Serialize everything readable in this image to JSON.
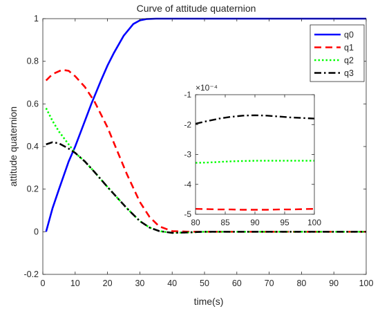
{
  "chart_data": [
    {
      "type": "line",
      "title": "Curve of attitude quaternion",
      "xlabel": "time(s)",
      "ylabel": "attitude quaternion",
      "xlim": [
        0,
        100
      ],
      "ylim": [
        -0.2,
        1
      ],
      "xticks": [
        0,
        10,
        20,
        30,
        40,
        50,
        60,
        70,
        80,
        90,
        100
      ],
      "yticks": [
        -0.2,
        0,
        0.2,
        0.4,
        0.6,
        0.8,
        1
      ],
      "xtick_labels": [
        "0",
        "10",
        "20",
        "30",
        "40",
        "50",
        "60",
        "70",
        "80",
        "90",
        "100"
      ],
      "ytick_labels": [
        "-0.2",
        "0",
        "0.2",
        "0.4",
        "0.6",
        "0.8",
        "1"
      ],
      "grid": false,
      "legend": "top-right",
      "series": [
        {
          "name": "q0",
          "color": "#0000ff",
          "dash": "solid",
          "x": [
            1,
            3,
            5,
            8,
            10,
            12,
            15,
            18,
            20,
            22,
            25,
            28,
            30,
            32,
            35,
            40,
            50,
            60,
            70,
            80,
            90,
            100
          ],
          "y": [
            0,
            0.11,
            0.2,
            0.33,
            0.4,
            0.48,
            0.6,
            0.71,
            0.78,
            0.84,
            0.92,
            0.975,
            0.992,
            0.998,
            1,
            1,
            1,
            1,
            1,
            1,
            1,
            1
          ]
        },
        {
          "name": "q1",
          "color": "#ff0000",
          "dash": "dash",
          "x": [
            1,
            3,
            6,
            8,
            10,
            13,
            16,
            20,
            23,
            26,
            30,
            33,
            36,
            40,
            45,
            50,
            60,
            70,
            80,
            90,
            100
          ],
          "y": [
            0.71,
            0.74,
            0.76,
            0.755,
            0.73,
            0.68,
            0.61,
            0.49,
            0.38,
            0.27,
            0.14,
            0.07,
            0.025,
            0.003,
            0,
            0,
            0,
            0,
            0,
            0,
            0
          ]
        },
        {
          "name": "q2",
          "color": "#00ff00",
          "dash": "dot",
          "x": [
            1,
            3,
            5,
            8,
            10,
            13,
            16,
            20,
            23,
            26,
            30,
            33,
            36,
            40,
            45,
            50,
            60,
            70,
            80,
            90,
            100
          ],
          "y": [
            0.58,
            0.52,
            0.47,
            0.41,
            0.37,
            0.33,
            0.28,
            0.21,
            0.16,
            0.11,
            0.05,
            0.02,
            0.003,
            -0.005,
            -0.003,
            0,
            0,
            0,
            0,
            0,
            0
          ]
        },
        {
          "name": "q3",
          "color": "#000000",
          "dash": "dashdot",
          "x": [
            1,
            3,
            5,
            8,
            10,
            13,
            16,
            20,
            23,
            26,
            30,
            33,
            36,
            40,
            45,
            50,
            60,
            70,
            80,
            90,
            100
          ],
          "y": [
            0.41,
            0.42,
            0.415,
            0.39,
            0.37,
            0.33,
            0.28,
            0.21,
            0.16,
            0.11,
            0.05,
            0.02,
            0.003,
            -0.005,
            -0.003,
            0,
            0,
            0,
            0,
            0,
            0
          ]
        }
      ]
    },
    {
      "type": "line",
      "title": "",
      "xlabel": "",
      "ylabel": "",
      "xlim": [
        80,
        100
      ],
      "ylim": [
        -5,
        -1
      ],
      "xticks": [
        80,
        85,
        90,
        95,
        100
      ],
      "yticks": [
        -5,
        -4,
        -3,
        -2,
        -1
      ],
      "xtick_labels": [
        "80",
        "85",
        "90",
        "95",
        "100"
      ],
      "ytick_labels": [
        "-5",
        "-4",
        "-3",
        "-2",
        "-1"
      ],
      "exponent_label": "×10⁻⁴",
      "grid": false,
      "series": [
        {
          "color": "#ff0000",
          "dash": "dash",
          "x": [
            80,
            82,
            84,
            86,
            88,
            90,
            92,
            94,
            96,
            98,
            100
          ],
          "y": [
            -4.82,
            -4.83,
            -4.84,
            -4.84,
            -4.85,
            -4.85,
            -4.85,
            -4.84,
            -4.84,
            -4.83,
            -4.82
          ]
        },
        {
          "color": "#00ff00",
          "dash": "dot",
          "x": [
            80,
            82,
            84,
            86,
            88,
            90,
            92,
            94,
            96,
            98,
            100
          ],
          "y": [
            -3.28,
            -3.27,
            -3.25,
            -3.23,
            -3.22,
            -3.21,
            -3.21,
            -3.21,
            -3.21,
            -3.21,
            -3.21
          ]
        },
        {
          "color": "#000000",
          "dash": "dashdot",
          "x": [
            80,
            82,
            84,
            86,
            88,
            90,
            92,
            94,
            96,
            98,
            100
          ],
          "y": [
            -1.97,
            -1.88,
            -1.8,
            -1.74,
            -1.7,
            -1.69,
            -1.7,
            -1.73,
            -1.76,
            -1.78,
            -1.8
          ]
        }
      ]
    }
  ]
}
